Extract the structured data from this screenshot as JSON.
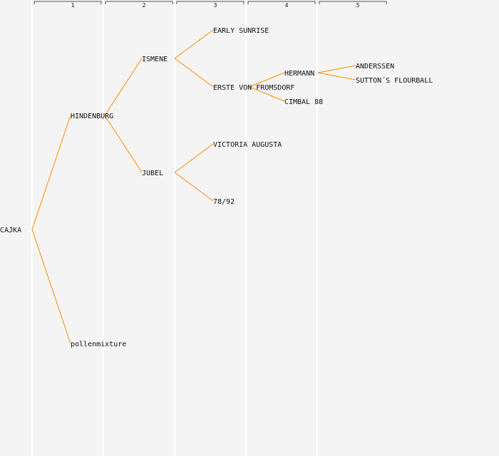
{
  "generations": [
    "1",
    "2",
    "3",
    "4",
    "5"
  ],
  "nodes": [
    {
      "id": "cajka",
      "label": "CAJKA"
    },
    {
      "id": "hindenburg",
      "label": "HINDENBURG"
    },
    {
      "id": "pollenmixture",
      "label": "pollenmixture"
    },
    {
      "id": "ismene",
      "label": "ISMENE"
    },
    {
      "id": "jubel",
      "label": "JUBEL"
    },
    {
      "id": "early-sunrise",
      "label": "EARLY SUNRISE"
    },
    {
      "id": "erste-von-fromsdorf",
      "label": "ERSTE VON FROMSDORF"
    },
    {
      "id": "victoria-augusta",
      "label": "VICTORIA AUGUSTA"
    },
    {
      "id": "78-92",
      "label": "78/92"
    },
    {
      "id": "hermann",
      "label": "HERMANN"
    },
    {
      "id": "cimbal-88",
      "label": "CIMBAL 88"
    },
    {
      "id": "anderssen",
      "label": "ANDERSSEN"
    },
    {
      "id": "suttons-flourball",
      "label": "SUTTON´S FLOURBALL"
    }
  ],
  "edges": [
    [
      "cajka",
      "hindenburg"
    ],
    [
      "cajka",
      "pollenmixture"
    ],
    [
      "hindenburg",
      "ismene"
    ],
    [
      "hindenburg",
      "jubel"
    ],
    [
      "ismene",
      "early-sunrise"
    ],
    [
      "ismene",
      "erste-von-fromsdorf"
    ],
    [
      "jubel",
      "victoria-augusta"
    ],
    [
      "jubel",
      "78-92"
    ],
    [
      "erste-von-fromsdorf",
      "hermann"
    ],
    [
      "erste-von-fromsdorf",
      "cimbal-88"
    ],
    [
      "hermann",
      "anderssen"
    ],
    [
      "hermann",
      "suttons-flourball"
    ]
  ],
  "colors": {
    "background": "#f4f4f4",
    "edge": "#ff8c00",
    "column_line": "#ffffff",
    "text": "#111111"
  }
}
